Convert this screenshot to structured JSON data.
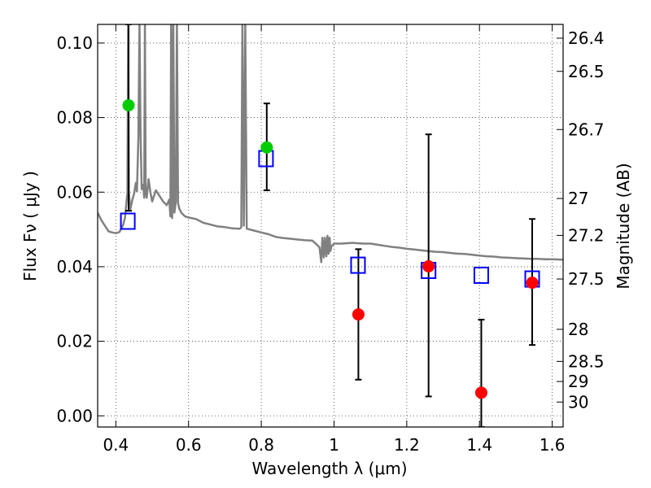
{
  "chart_data": {
    "type": "scatter",
    "xlabel": "Wavelength  λ (μm)",
    "ylabel": "Flux  Fν  ( μJy )",
    "ylabel_right": "Magnitude (AB)",
    "xlim": [
      0.35,
      1.63
    ],
    "ylim": [
      -0.003,
      0.105
    ],
    "grid": true,
    "x_ticks": [
      0.4,
      0.6,
      0.8,
      1.0,
      1.2,
      1.4,
      1.6
    ],
    "x_tick_labels": [
      "0.4",
      "0.6",
      "0.8",
      "1",
      "1.2",
      "1.4",
      "1.6"
    ],
    "y_ticks": [
      0.0,
      0.02,
      0.04,
      0.06,
      0.08,
      0.1
    ],
    "y_tick_labels": [
      "0.00",
      "0.02",
      "0.04",
      "0.06",
      "0.08",
      "0.10"
    ],
    "right_ticks": [
      {
        "label": "26.4",
        "flux": 0.1013
      },
      {
        "label": "26.5",
        "flux": 0.0924
      },
      {
        "label": "26.7",
        "flux": 0.0768
      },
      {
        "label": "27",
        "flux": 0.0583
      },
      {
        "label": "27.2",
        "flux": 0.0484
      },
      {
        "label": "27.5",
        "flux": 0.0367
      },
      {
        "label": "28",
        "flux": 0.0232
      },
      {
        "label": "28.5",
        "flux": 0.0146
      },
      {
        "label": "29",
        "flux": 0.0092
      },
      {
        "label": "30",
        "flux": 0.0037
      }
    ],
    "series": [
      {
        "kind": "line",
        "color": "#808080",
        "points": [
          [
            0.35,
            0.0545
          ],
          [
            0.36,
            0.0525
          ],
          [
            0.37,
            0.051
          ],
          [
            0.38,
            0.0495
          ],
          [
            0.39,
            0.0492
          ],
          [
            0.4,
            0.049
          ],
          [
            0.41,
            0.0493
          ],
          [
            0.42,
            0.0512
          ],
          [
            0.425,
            0.053
          ],
          [
            0.432,
            0.06
          ],
          [
            0.434,
            0.105
          ],
          [
            0.436,
            0.06
          ],
          [
            0.44,
            0.0555
          ],
          [
            0.445,
            0.0578
          ],
          [
            0.45,
            0.0595
          ],
          [
            0.455,
            0.0625
          ],
          [
            0.458,
            0.0602
          ],
          [
            0.462,
            0.075
          ],
          [
            0.465,
            0.105
          ],
          [
            0.468,
            0.076
          ],
          [
            0.471,
            0.0608
          ],
          [
            0.475,
            0.062
          ],
          [
            0.478,
            0.0585
          ],
          [
            0.48,
            0.105
          ],
          [
            0.482,
            0.06
          ],
          [
            0.485,
            0.0585
          ],
          [
            0.49,
            0.0635
          ],
          [
            0.495,
            0.06
          ],
          [
            0.5,
            0.0575
          ],
          [
            0.51,
            0.0605
          ],
          [
            0.52,
            0.059
          ],
          [
            0.53,
            0.0575
          ],
          [
            0.54,
            0.0565
          ],
          [
            0.547,
            0.058
          ],
          [
            0.55,
            0.0535
          ],
          [
            0.552,
            0.105
          ],
          [
            0.555,
            0.053
          ],
          [
            0.558,
            0.105
          ],
          [
            0.561,
            0.0545
          ],
          [
            0.565,
            0.0575
          ],
          [
            0.568,
            0.105
          ],
          [
            0.571,
            0.057
          ],
          [
            0.575,
            0.0555
          ],
          [
            0.58,
            0.0545
          ],
          [
            0.59,
            0.0535
          ],
          [
            0.6,
            0.0532
          ],
          [
            0.62,
            0.0528
          ],
          [
            0.64,
            0.0518
          ],
          [
            0.66,
            0.0513
          ],
          [
            0.68,
            0.0508
          ],
          [
            0.7,
            0.0506
          ],
          [
            0.72,
            0.0503
          ],
          [
            0.74,
            0.0502
          ],
          [
            0.745,
            0.0505
          ],
          [
            0.748,
            0.105
          ],
          [
            0.752,
            0.051
          ],
          [
            0.756,
            0.105
          ],
          [
            0.76,
            0.0502
          ],
          [
            0.78,
            0.0497
          ],
          [
            0.8,
            0.0492
          ],
          [
            0.82,
            0.0487
          ],
          [
            0.84,
            0.048
          ],
          [
            0.86,
            0.0477
          ],
          [
            0.88,
            0.0475
          ],
          [
            0.9,
            0.0473
          ],
          [
            0.92,
            0.0471
          ],
          [
            0.94,
            0.047
          ],
          [
            0.95,
            0.0462
          ],
          [
            0.96,
            0.0452
          ],
          [
            0.965,
            0.0412
          ],
          [
            0.968,
            0.0478
          ],
          [
            0.972,
            0.0425
          ],
          [
            0.975,
            0.0478
          ],
          [
            0.979,
            0.0428
          ],
          [
            0.982,
            0.0483
          ],
          [
            0.985,
            0.0435
          ],
          [
            0.988,
            0.0478
          ],
          [
            0.99,
            0.0442
          ],
          [
            0.993,
            0.0455
          ],
          [
            1.0,
            0.0462
          ],
          [
            1.02,
            0.0462
          ],
          [
            1.05,
            0.0464
          ],
          [
            1.08,
            0.0462
          ],
          [
            1.1,
            0.0462
          ],
          [
            1.12,
            0.0459
          ],
          [
            1.14,
            0.0456
          ],
          [
            1.16,
            0.0453
          ],
          [
            1.18,
            0.0451
          ],
          [
            1.2,
            0.0448
          ],
          [
            1.22,
            0.0446
          ],
          [
            1.24,
            0.0444
          ],
          [
            1.26,
            0.0442
          ],
          [
            1.28,
            0.044
          ],
          [
            1.3,
            0.0439
          ],
          [
            1.32,
            0.0437
          ],
          [
            1.34,
            0.0435
          ],
          [
            1.36,
            0.0434
          ],
          [
            1.38,
            0.0432
          ],
          [
            1.4,
            0.043
          ],
          [
            1.42,
            0.0428
          ],
          [
            1.44,
            0.0427
          ],
          [
            1.46,
            0.0425
          ],
          [
            1.48,
            0.0424
          ],
          [
            1.5,
            0.0423
          ],
          [
            1.52,
            0.0422
          ],
          [
            1.54,
            0.0421
          ],
          [
            1.56,
            0.0421
          ],
          [
            1.58,
            0.042
          ],
          [
            1.6,
            0.042
          ],
          [
            1.63,
            0.0419
          ]
        ]
      },
      {
        "kind": "errorbar",
        "color": "#000000",
        "points": [
          {
            "x": 0.435,
            "low": 0.055,
            "high": 0.105
          },
          {
            "x": 0.815,
            "low": 0.0605,
            "high": 0.0838
          },
          {
            "x": 1.067,
            "low": 0.0097,
            "high": 0.0447
          },
          {
            "x": 1.26,
            "low": 0.0052,
            "high": 0.0755
          },
          {
            "x": 1.405,
            "low": -0.003,
            "high": 0.0258
          },
          {
            "x": 1.545,
            "low": 0.019,
            "high": 0.0528
          }
        ]
      },
      {
        "kind": "square",
        "color": "#0000ff",
        "points": [
          [
            0.433,
            0.0522
          ],
          [
            0.813,
            0.069
          ],
          [
            1.066,
            0.0404
          ],
          [
            1.26,
            0.039
          ],
          [
            1.405,
            0.0377
          ],
          [
            1.545,
            0.0367
          ]
        ]
      },
      {
        "kind": "circle",
        "color": "#00cc00",
        "points": [
          [
            0.435,
            0.0833
          ],
          [
            0.815,
            0.072
          ]
        ]
      },
      {
        "kind": "circle",
        "color": "#ff0000",
        "points": [
          [
            1.067,
            0.0272
          ],
          [
            1.26,
            0.0401
          ],
          [
            1.405,
            0.0062
          ],
          [
            1.545,
            0.0357
          ]
        ]
      }
    ]
  }
}
